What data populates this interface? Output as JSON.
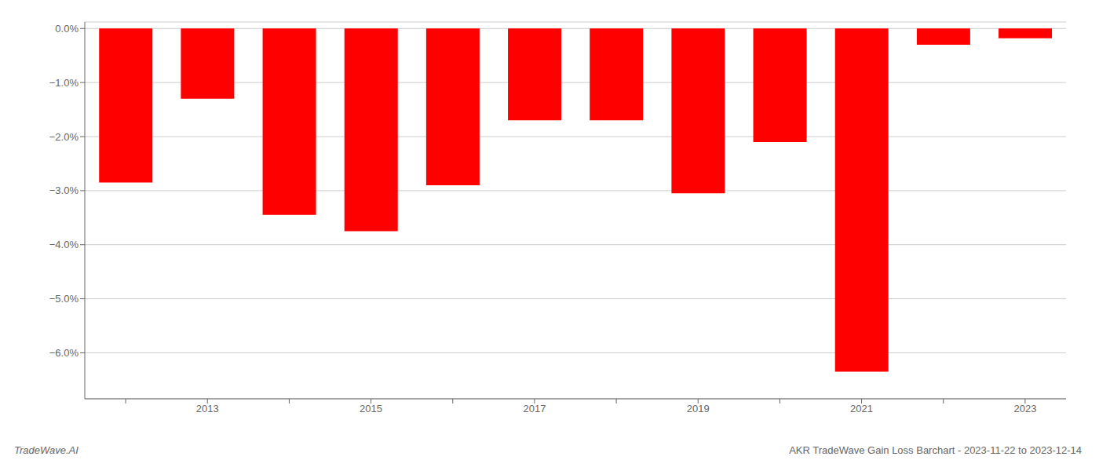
{
  "chart_data": {
    "type": "bar",
    "categories": [
      null,
      "2013",
      null,
      "2015",
      null,
      "2017",
      null,
      "2019",
      null,
      "2021",
      null,
      "2023"
    ],
    "values": [
      -2.85,
      -1.3,
      -3.45,
      -3.75,
      -2.9,
      -1.7,
      -1.7,
      -3.05,
      -2.1,
      -6.35,
      -0.3,
      -0.18
    ],
    "color": "#ff0000",
    "ylim": [
      -6.85,
      0.12
    ],
    "yticks": [
      {
        "value": 0.0,
        "label": "0.0%"
      },
      {
        "value": -1.0,
        "label": "−1.0%"
      },
      {
        "value": -2.0,
        "label": "−2.0%"
      },
      {
        "value": -3.0,
        "label": "−3.0%"
      },
      {
        "value": -4.0,
        "label": "−4.0%"
      },
      {
        "value": -5.0,
        "label": "−5.0%"
      },
      {
        "value": -6.0,
        "label": "−6.0%"
      }
    ],
    "grid": true,
    "annotations": [
      "TradeWave.AI",
      "AKR TradeWave Gain Loss Barchart - 2023-11-22 to 2023-12-14"
    ]
  }
}
